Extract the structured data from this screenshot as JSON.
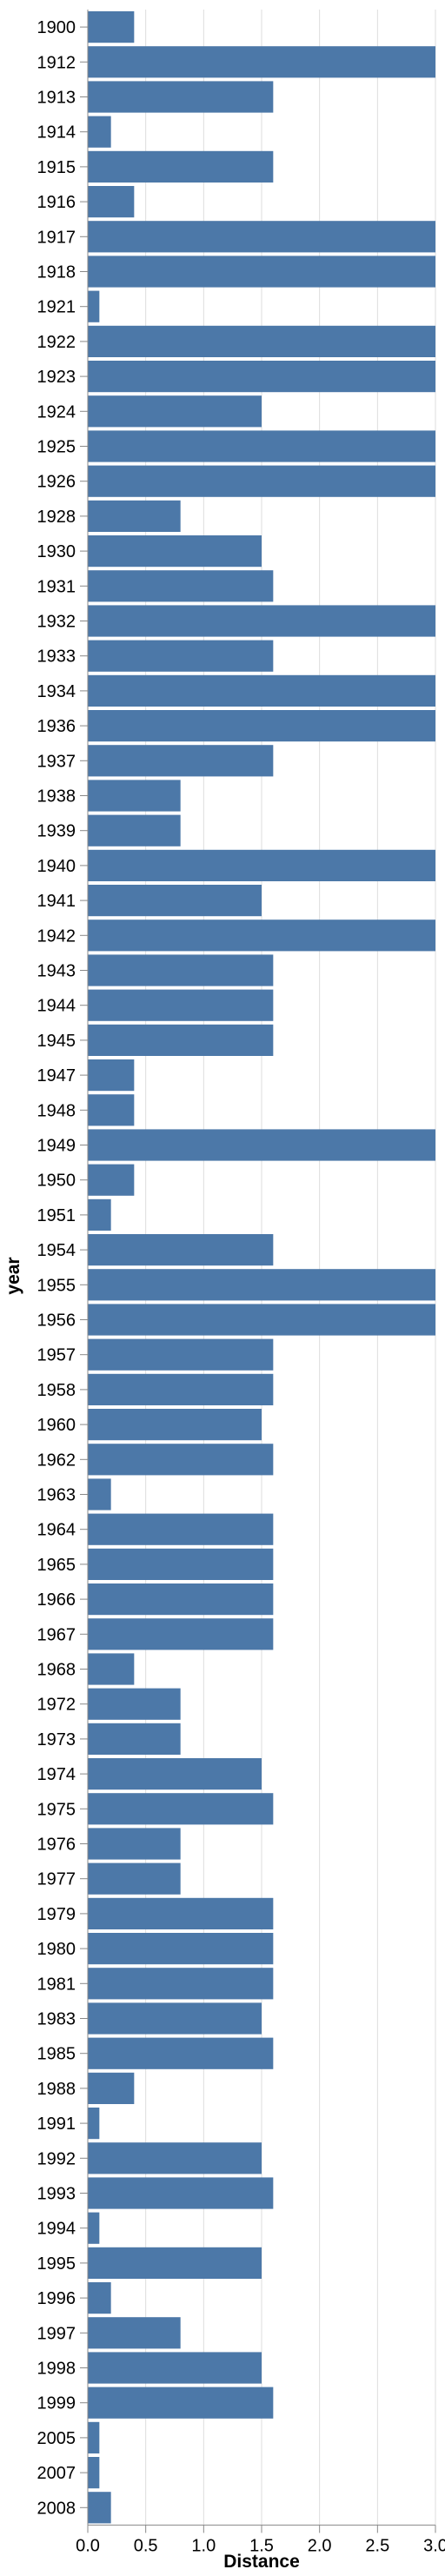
{
  "chart_data": {
    "type": "bar",
    "orientation": "horizontal",
    "xlabel": "Distance",
    "ylabel": "year",
    "xlim": [
      0,
      3.0
    ],
    "x_ticks": [
      "0.0",
      "0.5",
      "1.0",
      "1.5",
      "2.0",
      "2.5",
      "3.0"
    ],
    "grid": true,
    "bar_color": "#4c78a8",
    "categories": [
      "1900",
      "1912",
      "1913",
      "1914",
      "1915",
      "1916",
      "1917",
      "1918",
      "1921",
      "1922",
      "1923",
      "1924",
      "1925",
      "1926",
      "1928",
      "1930",
      "1931",
      "1932",
      "1933",
      "1934",
      "1936",
      "1937",
      "1938",
      "1939",
      "1940",
      "1941",
      "1942",
      "1943",
      "1944",
      "1945",
      "1947",
      "1948",
      "1949",
      "1950",
      "1951",
      "1954",
      "1955",
      "1956",
      "1957",
      "1958",
      "1960",
      "1962",
      "1963",
      "1964",
      "1965",
      "1966",
      "1967",
      "1968",
      "1972",
      "1973",
      "1974",
      "1975",
      "1976",
      "1977",
      "1979",
      "1980",
      "1981",
      "1983",
      "1985",
      "1988",
      "1991",
      "1992",
      "1993",
      "1994",
      "1995",
      "1996",
      "1997",
      "1998",
      "1999",
      "2005",
      "2007",
      "2008"
    ],
    "values": [
      0.4,
      3.0,
      1.6,
      0.2,
      1.6,
      0.4,
      3.0,
      3.0,
      0.1,
      3.0,
      3.0,
      1.5,
      3.0,
      3.0,
      0.8,
      1.5,
      1.6,
      3.0,
      1.6,
      3.0,
      3.0,
      1.6,
      0.8,
      0.8,
      3.0,
      1.5,
      3.0,
      1.6,
      1.6,
      1.6,
      0.4,
      0.4,
      3.0,
      0.4,
      0.2,
      1.6,
      3.0,
      3.0,
      1.6,
      1.6,
      1.5,
      1.6,
      0.2,
      1.6,
      1.6,
      1.6,
      1.6,
      0.4,
      0.8,
      0.8,
      1.5,
      1.6,
      0.8,
      0.8,
      1.6,
      1.6,
      1.6,
      1.5,
      1.6,
      0.4,
      0.1,
      1.5,
      1.6,
      0.1,
      1.5,
      0.2,
      0.8,
      1.5,
      1.6,
      0.1,
      0.1,
      0.2
    ]
  }
}
